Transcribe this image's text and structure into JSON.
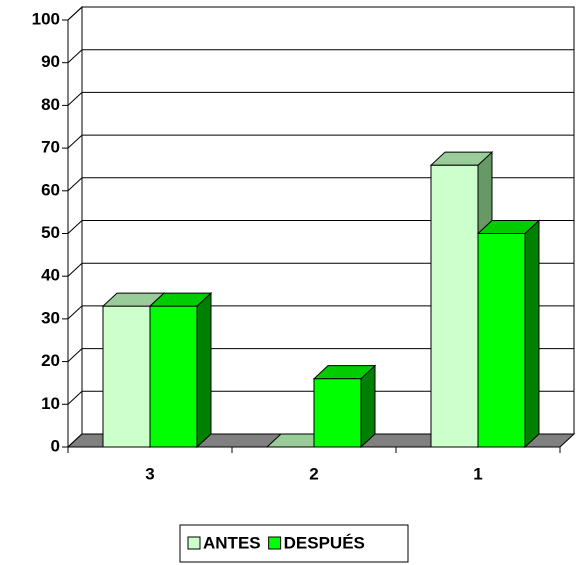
{
  "chart_data": {
    "type": "bar3d",
    "categories": [
      "3",
      "2",
      "1"
    ],
    "series": [
      {
        "name": "ANTES",
        "color": "#ccffcc",
        "values": [
          33,
          0,
          66
        ]
      },
      {
        "name": "DESPUÉS",
        "color": "#00ff00",
        "values": [
          33,
          16,
          50
        ]
      }
    ],
    "ylim": [
      0,
      100
    ],
    "yticks": [
      0,
      10,
      20,
      30,
      40,
      50,
      60,
      70,
      80,
      90,
      100
    ],
    "grid": true,
    "legend": "bottom"
  }
}
